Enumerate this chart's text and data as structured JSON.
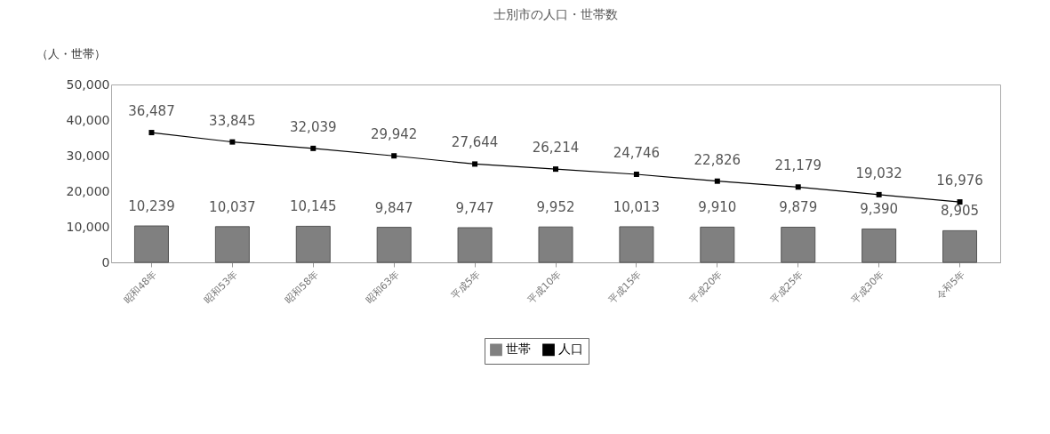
{
  "chart_data": {
    "type": "bar",
    "title": "士別市の人口・世帯数",
    "ylabel": "（人・世帯）",
    "categories": [
      "昭和48年",
      "昭和53年",
      "昭和58年",
      "昭和63年",
      "平成5年",
      "平成10年",
      "平成15年",
      "平成20年",
      "平成25年",
      "平成30年",
      "令和5年"
    ],
    "series": [
      {
        "name": "世帯",
        "color": "#808080",
        "values": [
          10239,
          10037,
          10145,
          9847,
          9747,
          9952,
          10013,
          9910,
          9879,
          9390,
          8905
        ],
        "value_labels": [
          "10,239",
          "10,037",
          "10,145",
          "9,847",
          "9,747",
          "9,952",
          "10,013",
          "9,910",
          "9,879",
          "9,390",
          "8,905"
        ]
      },
      {
        "name": "人口",
        "type": "line",
        "color": "#000000",
        "marker": "square",
        "values": [
          36487,
          33845,
          32039,
          29942,
          27644,
          26214,
          24746,
          22826,
          21179,
          19032,
          16976
        ],
        "value_labels": [
          "36,487",
          "33,845",
          "32,039",
          "29,942",
          "27,644",
          "26,214",
          "24,746",
          "22,826",
          "21,179",
          "19,032",
          "16,976"
        ]
      }
    ],
    "ylim": [
      0,
      50000
    ],
    "yticks": [
      0,
      {
        "value": 10000,
        "label": "10,000"
      },
      {
        "value": 20000,
        "label": "20,000"
      },
      {
        "value": 30000,
        "label": "30,000"
      },
      {
        "value": 40000,
        "label": "40,000"
      },
      {
        "value": 50000,
        "label": "50,000"
      }
    ],
    "legend": "bottom"
  }
}
